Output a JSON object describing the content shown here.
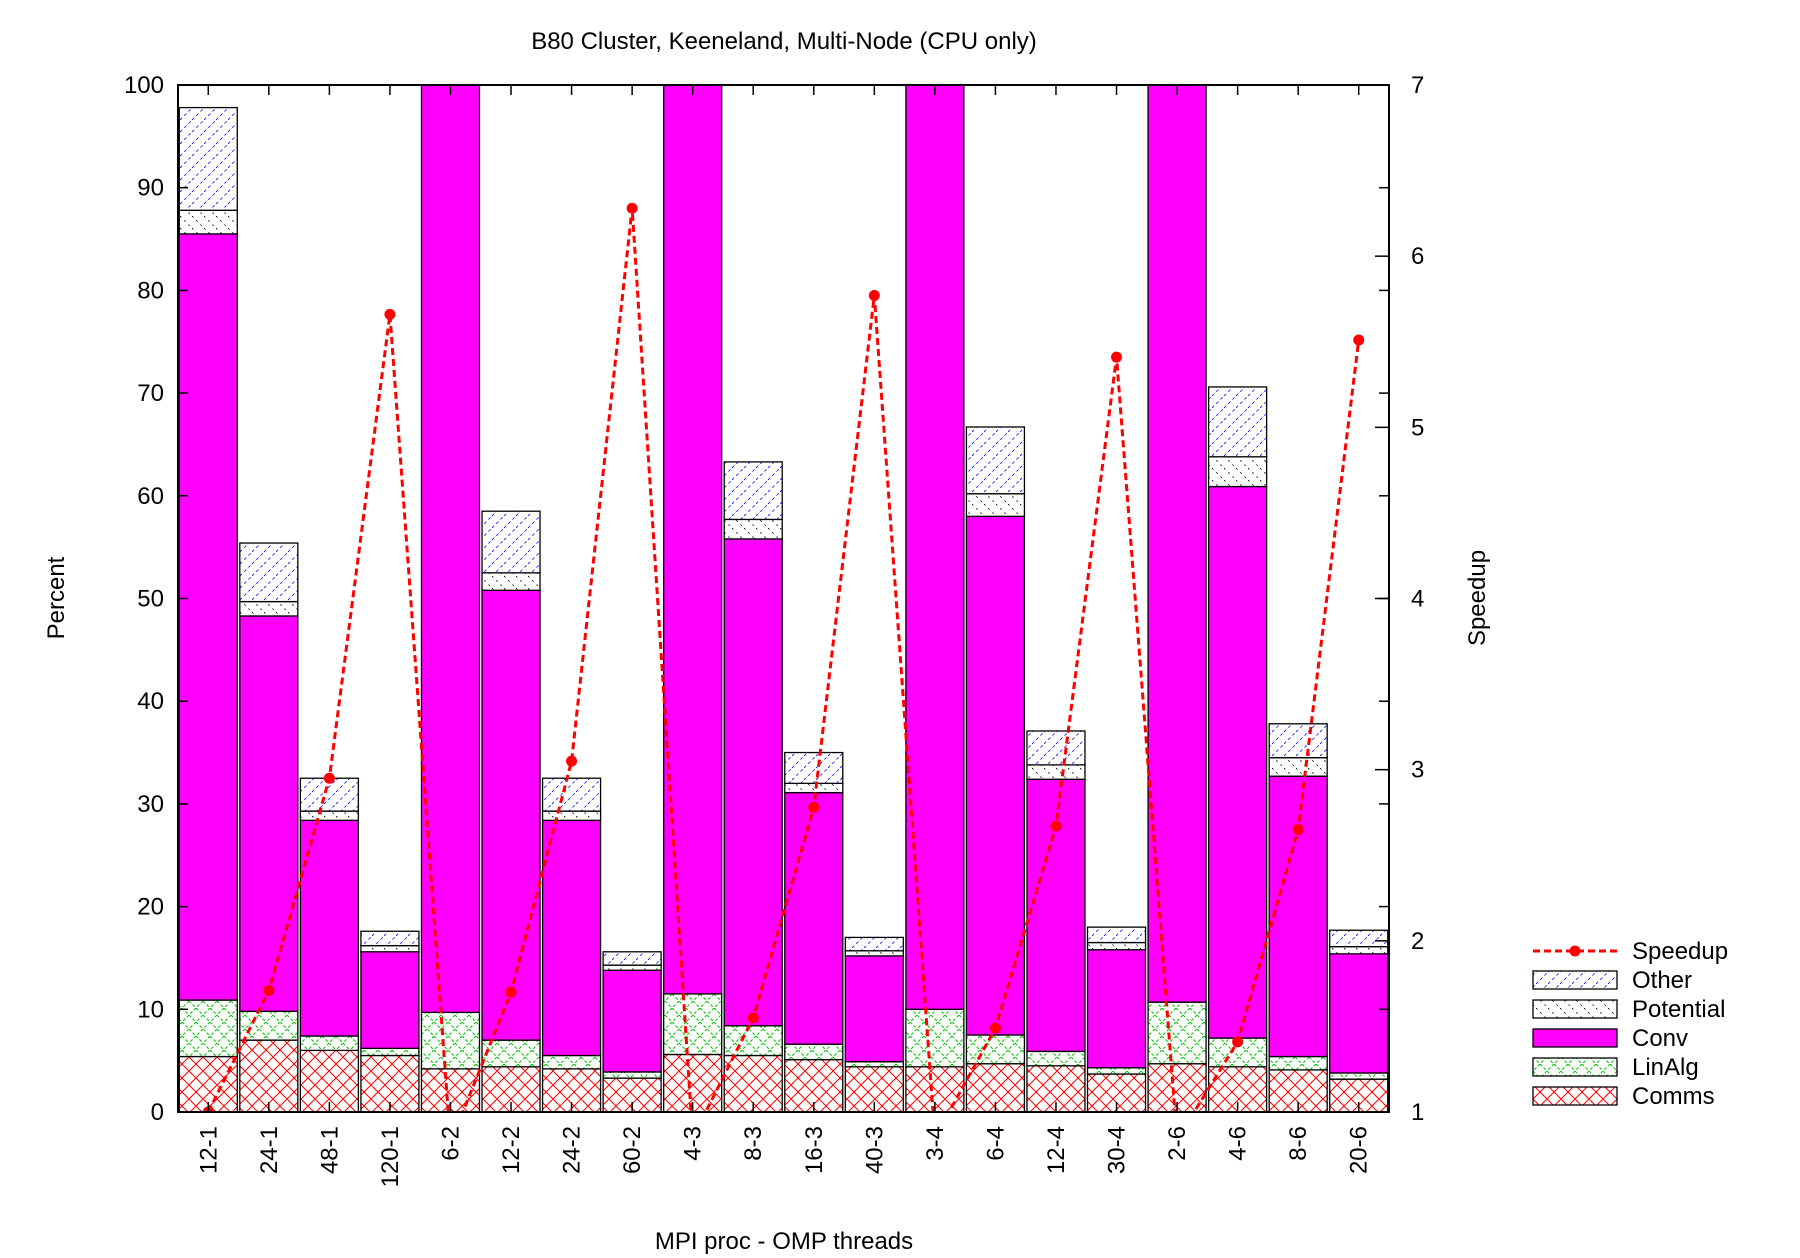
{
  "chart_data": {
    "type": "bar",
    "stacked": true,
    "title": "B80 Cluster, Keeneland, Multi-Node (CPU only)",
    "xlabel": "MPI proc - OMP threads",
    "ylabel": "Percent",
    "y2label": "Speedup",
    "ylim": [
      0,
      100
    ],
    "y2lim": [
      1,
      7
    ],
    "yticks": [
      "0",
      "10",
      "20",
      "30",
      "40",
      "50",
      "60",
      "70",
      "80",
      "90",
      "100"
    ],
    "y2ticks": [
      "1",
      "2",
      "3",
      "4",
      "5",
      "6",
      "7"
    ],
    "legend_position": "bottom-right, outside plot",
    "grid": false,
    "categories": [
      "12-1",
      "24-1",
      "48-1",
      "120-1",
      "6-2",
      "12-2",
      "24-2",
      "60-2",
      "4-3",
      "8-3",
      "16-3",
      "40-3",
      "3-4",
      "6-4",
      "12-4",
      "30-4",
      "2-6",
      "4-6",
      "8-6",
      "20-6"
    ],
    "series": [
      {
        "name": "Comms",
        "color": "#ff0000",
        "pattern": "crosshatch",
        "values": [
          5.4,
          7.0,
          6.0,
          5.5,
          4.2,
          4.4,
          4.2,
          3.3,
          5.6,
          5.5,
          5.1,
          4.4,
          4.4,
          4.7,
          4.5,
          3.7,
          4.7,
          4.4,
          4.1,
          3.2
        ]
      },
      {
        "name": "LinAlg",
        "color": "#00c000",
        "pattern": "crosshatch",
        "values": [
          5.5,
          2.8,
          1.4,
          0.7,
          5.5,
          2.6,
          1.3,
          0.6,
          5.9,
          2.9,
          1.5,
          0.5,
          5.6,
          2.8,
          1.4,
          0.6,
          6.0,
          2.8,
          1.3,
          0.6
        ]
      },
      {
        "name": "Conv",
        "color": "#ff00ff",
        "pattern": "solid",
        "values": [
          74.6,
          38.5,
          21.0,
          9.4,
          90.3,
          43.8,
          22.9,
          9.9,
          88.5,
          47.4,
          24.5,
          10.3,
          90.0,
          50.5,
          26.5,
          11.5,
          89.3,
          53.7,
          27.3,
          11.6
        ]
      },
      {
        "name": "Potential",
        "color": "#000000",
        "pattern": "light-dash",
        "values": [
          2.3,
          1.4,
          0.9,
          0.6,
          0,
          1.7,
          0.9,
          0.5,
          0,
          1.9,
          0.9,
          0.5,
          0,
          2.2,
          1.4,
          0.7,
          0,
          2.9,
          1.8,
          0.7
        ]
      },
      {
        "name": "Other",
        "color": "#0000ff",
        "pattern": "diagonal-dash",
        "values": [
          10.0,
          5.7,
          3.2,
          1.4,
          0,
          6.0,
          3.2,
          1.3,
          0,
          5.6,
          3.0,
          1.3,
          0,
          6.5,
          3.3,
          1.5,
          0,
          6.8,
          3.3,
          1.6
        ]
      }
    ],
    "speedup": {
      "name": "Speedup",
      "color": "#ff0000",
      "values": [
        1.0,
        1.71,
        2.95,
        5.66,
        0.82,
        1.7,
        3.05,
        6.28,
        0.85,
        1.55,
        2.78,
        5.77,
        0.85,
        1.49,
        2.67,
        5.41,
        0.84,
        1.41,
        2.65,
        5.51
      ]
    }
  }
}
